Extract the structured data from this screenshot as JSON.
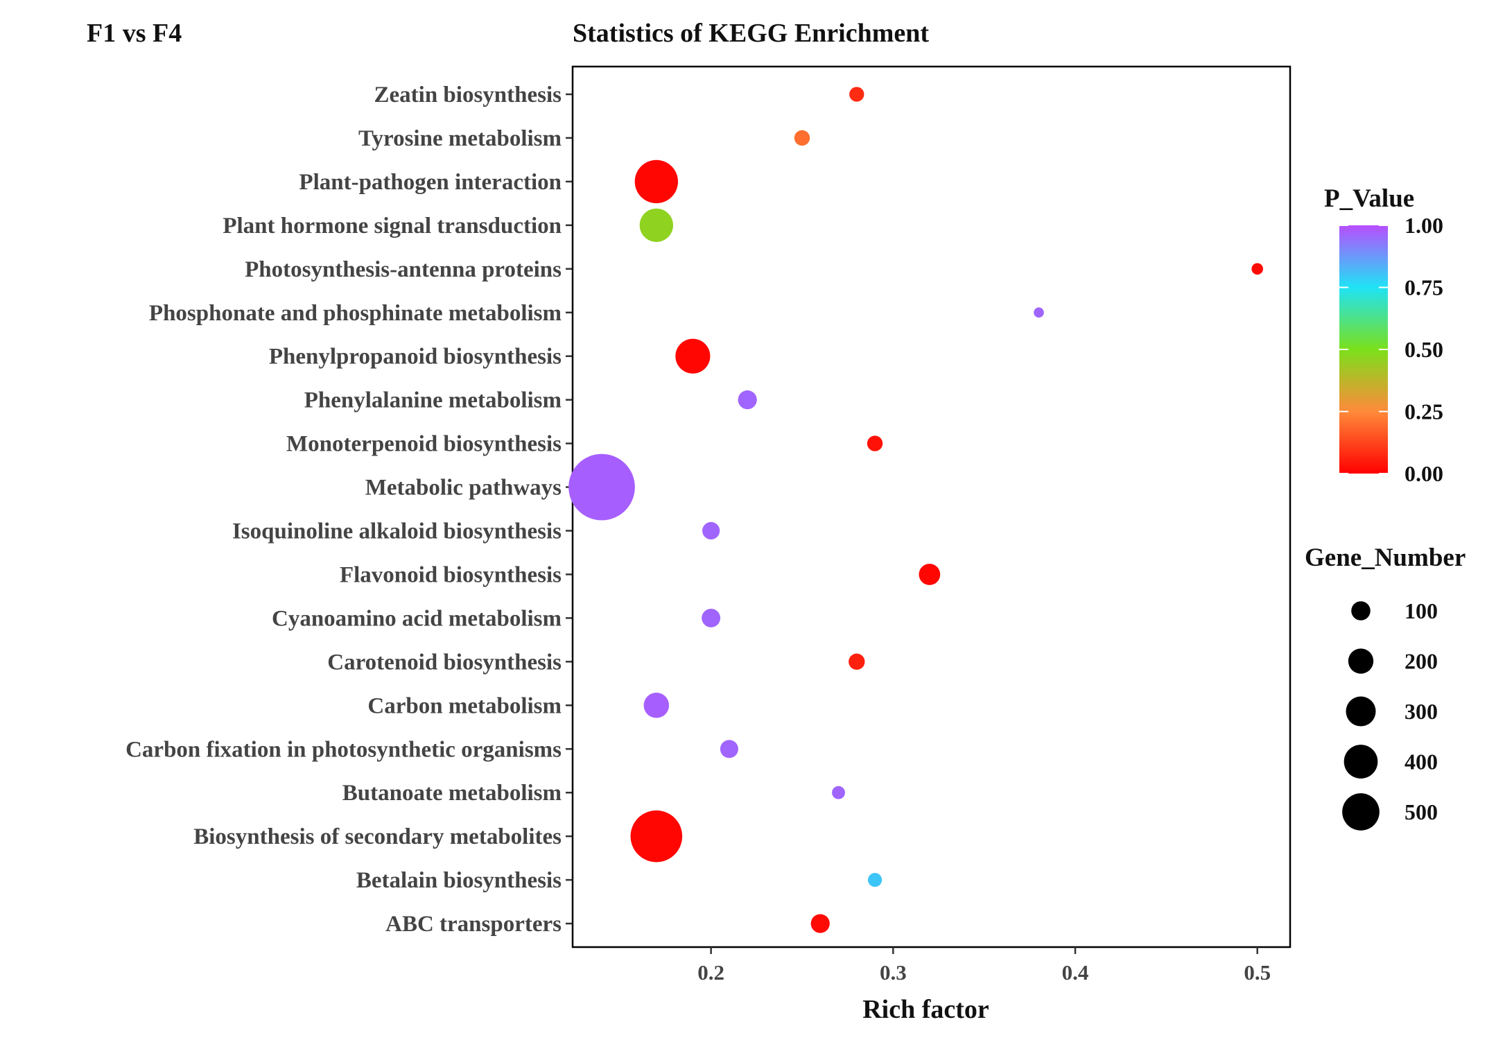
{
  "header": {
    "corner_title": "F1 vs F4",
    "title": "Statistics of KEGG Enrichment"
  },
  "chart_data": {
    "type": "scatter",
    "title": "Statistics of KEGG Enrichment",
    "xlabel": "Rich factor",
    "ylabel": "",
    "xlim": [
      0.124,
      0.518
    ],
    "xticks": [
      0.2,
      0.3,
      0.4,
      0.5
    ],
    "xtick_labels": [
      "0.2",
      "0.3",
      "0.4",
      "0.5"
    ],
    "grid": false,
    "color_legend": {
      "title": "P_Value",
      "ticks": [
        1.0,
        0.75,
        0.5,
        0.25,
        0.0
      ],
      "tick_labels": [
        "1.00",
        "0.75",
        "0.50",
        "0.25",
        "0.00"
      ],
      "colors": [
        "#ff0000",
        "#ff8a3a",
        "#7be01b",
        "#1fe3f5",
        "#b84dff"
      ]
    },
    "size_legend": {
      "title": "Gene_Number",
      "values": [
        100,
        200,
        300,
        400,
        500
      ],
      "labels": [
        "100",
        "200",
        "300",
        "400",
        "500"
      ]
    },
    "points": [
      {
        "pathway": "Zeatin biosynthesis",
        "rich_factor": 0.28,
        "p_value": 0.08,
        "gene_number": 12
      },
      {
        "pathway": "Tyrosine metabolism",
        "rich_factor": 0.25,
        "p_value": 0.2,
        "gene_number": 14
      },
      {
        "pathway": "Plant-pathogen interaction",
        "rich_factor": 0.17,
        "p_value": 0.01,
        "gene_number": 200
      },
      {
        "pathway": "Plant hormone signal transduction",
        "rich_factor": 0.17,
        "p_value": 0.46,
        "gene_number": 110
      },
      {
        "pathway": "Photosynthesis-antenna proteins",
        "rich_factor": 0.5,
        "p_value": 0.02,
        "gene_number": 5
      },
      {
        "pathway": "Phosphonate and phosphinate metabolism",
        "rich_factor": 0.38,
        "p_value": 0.96,
        "gene_number": 3
      },
      {
        "pathway": "Phenylpropanoid biosynthesis",
        "rich_factor": 0.19,
        "p_value": 0.01,
        "gene_number": 120
      },
      {
        "pathway": "Phenylalanine metabolism",
        "rich_factor": 0.22,
        "p_value": 0.96,
        "gene_number": 25
      },
      {
        "pathway": "Monoterpenoid biosynthesis",
        "rich_factor": 0.29,
        "p_value": 0.03,
        "gene_number": 14
      },
      {
        "pathway": "Metabolic pathways",
        "rich_factor": 0.14,
        "p_value": 0.97,
        "gene_number": 520
      },
      {
        "pathway": "Isoquinoline alkaloid biosynthesis",
        "rich_factor": 0.2,
        "p_value": 0.96,
        "gene_number": 20
      },
      {
        "pathway": "Flavonoid biosynthesis",
        "rich_factor": 0.32,
        "p_value": 0.01,
        "gene_number": 35
      },
      {
        "pathway": "Cyanoamino acid metabolism",
        "rich_factor": 0.2,
        "p_value": 0.96,
        "gene_number": 24
      },
      {
        "pathway": "Carotenoid biosynthesis",
        "rich_factor": 0.28,
        "p_value": 0.06,
        "gene_number": 16
      },
      {
        "pathway": "Carbon metabolism",
        "rich_factor": 0.17,
        "p_value": 0.97,
        "gene_number": 55
      },
      {
        "pathway": "Carbon fixation in photosynthetic organisms",
        "rich_factor": 0.21,
        "p_value": 0.96,
        "gene_number": 22
      },
      {
        "pathway": "Butanoate metabolism",
        "rich_factor": 0.27,
        "p_value": 0.96,
        "gene_number": 8
      },
      {
        "pathway": "Biosynthesis of secondary metabolites",
        "rich_factor": 0.17,
        "p_value": 0.01,
        "gene_number": 300
      },
      {
        "pathway": "Betalain biosynthesis",
        "rich_factor": 0.29,
        "p_value": 0.8,
        "gene_number": 10
      },
      {
        "pathway": "ABC transporters",
        "rich_factor": 0.26,
        "p_value": 0.02,
        "gene_number": 25
      }
    ]
  }
}
